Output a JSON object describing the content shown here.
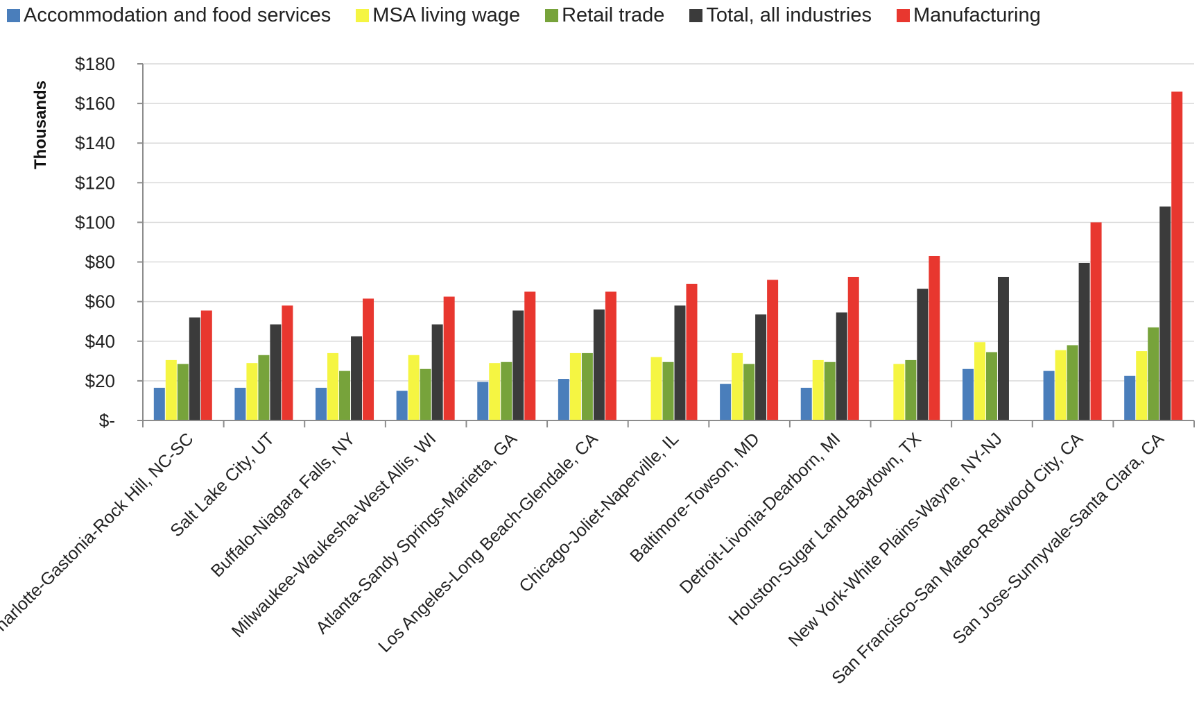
{
  "chart_data": {
    "type": "bar",
    "title": "",
    "ylabel": "Thousands",
    "xlabel": "",
    "ylim": [
      0,
      180
    ],
    "yticks": [
      "$-",
      "$20",
      "$40",
      "$60",
      "$80",
      "$100",
      "$120",
      "$140",
      "$160",
      "$180"
    ],
    "grid": true,
    "legend_position": "top",
    "categories": [
      "Charlotte-Gastonia-Rock Hill, NC-SC",
      "Salt Lake City, UT",
      "Buffalo-Niagara Falls, NY",
      "Milwaukee-Waukesha-West Allis, WI",
      "Atlanta-Sandy Springs-Marietta, GA",
      "Los Angeles-Long Beach-Glendale, CA",
      "Chicago-Joliet-Naperville, IL",
      "Baltimore-Towson, MD",
      "Detroit-Livonia-Dearborn, MI",
      "Houston-Sugar Land-Baytown, TX",
      "New York-White Plains-Wayne, NY-NJ",
      "San Francisco-San Mateo-Redwood City, CA",
      "San Jose-Sunnyvale-Santa Clara, CA"
    ],
    "series": [
      {
        "name": "Accommodation and food services",
        "color": "#4a7ebb",
        "values": [
          16.5,
          16.5,
          16.5,
          15,
          19.5,
          21,
          null,
          18.5,
          16.5,
          null,
          26,
          25,
          22.5
        ]
      },
      {
        "name": "MSA living wage",
        "color": "#f5f542",
        "values": [
          30.5,
          29,
          34,
          33,
          29,
          34,
          32,
          34,
          30.5,
          28.5,
          39.5,
          35.5,
          35
        ]
      },
      {
        "name": "Retail trade",
        "color": "#77a33b",
        "values": [
          28.5,
          33,
          25,
          26,
          29.5,
          34,
          29.5,
          28.5,
          29.5,
          30.5,
          34.5,
          38,
          47
        ]
      },
      {
        "name": "Total, all industries",
        "color": "#3b3b3b",
        "values": [
          52,
          48.5,
          42.5,
          48.5,
          55.5,
          56,
          58,
          53.5,
          54.5,
          66.5,
          72.5,
          79.5,
          108
        ]
      },
      {
        "name": "Manufacturing",
        "color": "#e8372f",
        "values": [
          55.5,
          58,
          61.5,
          62.5,
          65,
          65,
          69,
          71,
          72.5,
          83,
          null,
          100,
          166
        ]
      }
    ]
  }
}
